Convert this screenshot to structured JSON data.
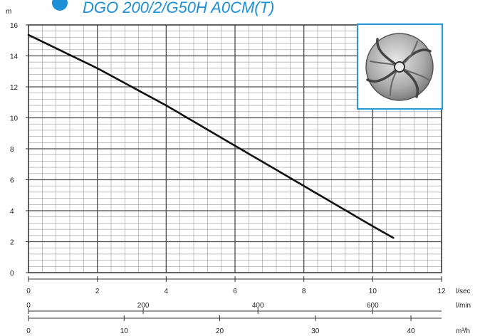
{
  "chart_data": {
    "type": "line",
    "title": "DGO 200/2/G50H A0CM(T)",
    "ylabel": "m",
    "ylim": [
      0,
      16
    ],
    "yticks": [
      0,
      2,
      4,
      6,
      8,
      10,
      12,
      14,
      16
    ],
    "grid": true,
    "axes": [
      {
        "unit": "l/sec",
        "xlim": [
          0,
          12
        ],
        "ticks": [
          0,
          2,
          4,
          6,
          8,
          10,
          12
        ]
      },
      {
        "unit": "l/min",
        "xlim": [
          0,
          720
        ],
        "ticks": [
          0,
          200,
          400,
          600
        ]
      },
      {
        "unit": "m³/h",
        "xlim": [
          0,
          43.2
        ],
        "ticks": [
          0,
          10,
          20,
          30,
          40
        ]
      }
    ],
    "series": [
      {
        "x": [
          0,
          2,
          4,
          6,
          8,
          10,
          10.6
        ],
        "y": [
          15.35,
          13.2,
          10.8,
          8.2,
          5.6,
          3.0,
          2.25
        ]
      }
    ],
    "colors": {
      "curve": "#111111",
      "grid": "#4a4a4a",
      "accent": "#1d8fd6",
      "impeller_border": "#2a9ad6"
    },
    "icons": {
      "impeller": "impeller-icon",
      "brand_dot": "brand-dot-icon"
    }
  }
}
